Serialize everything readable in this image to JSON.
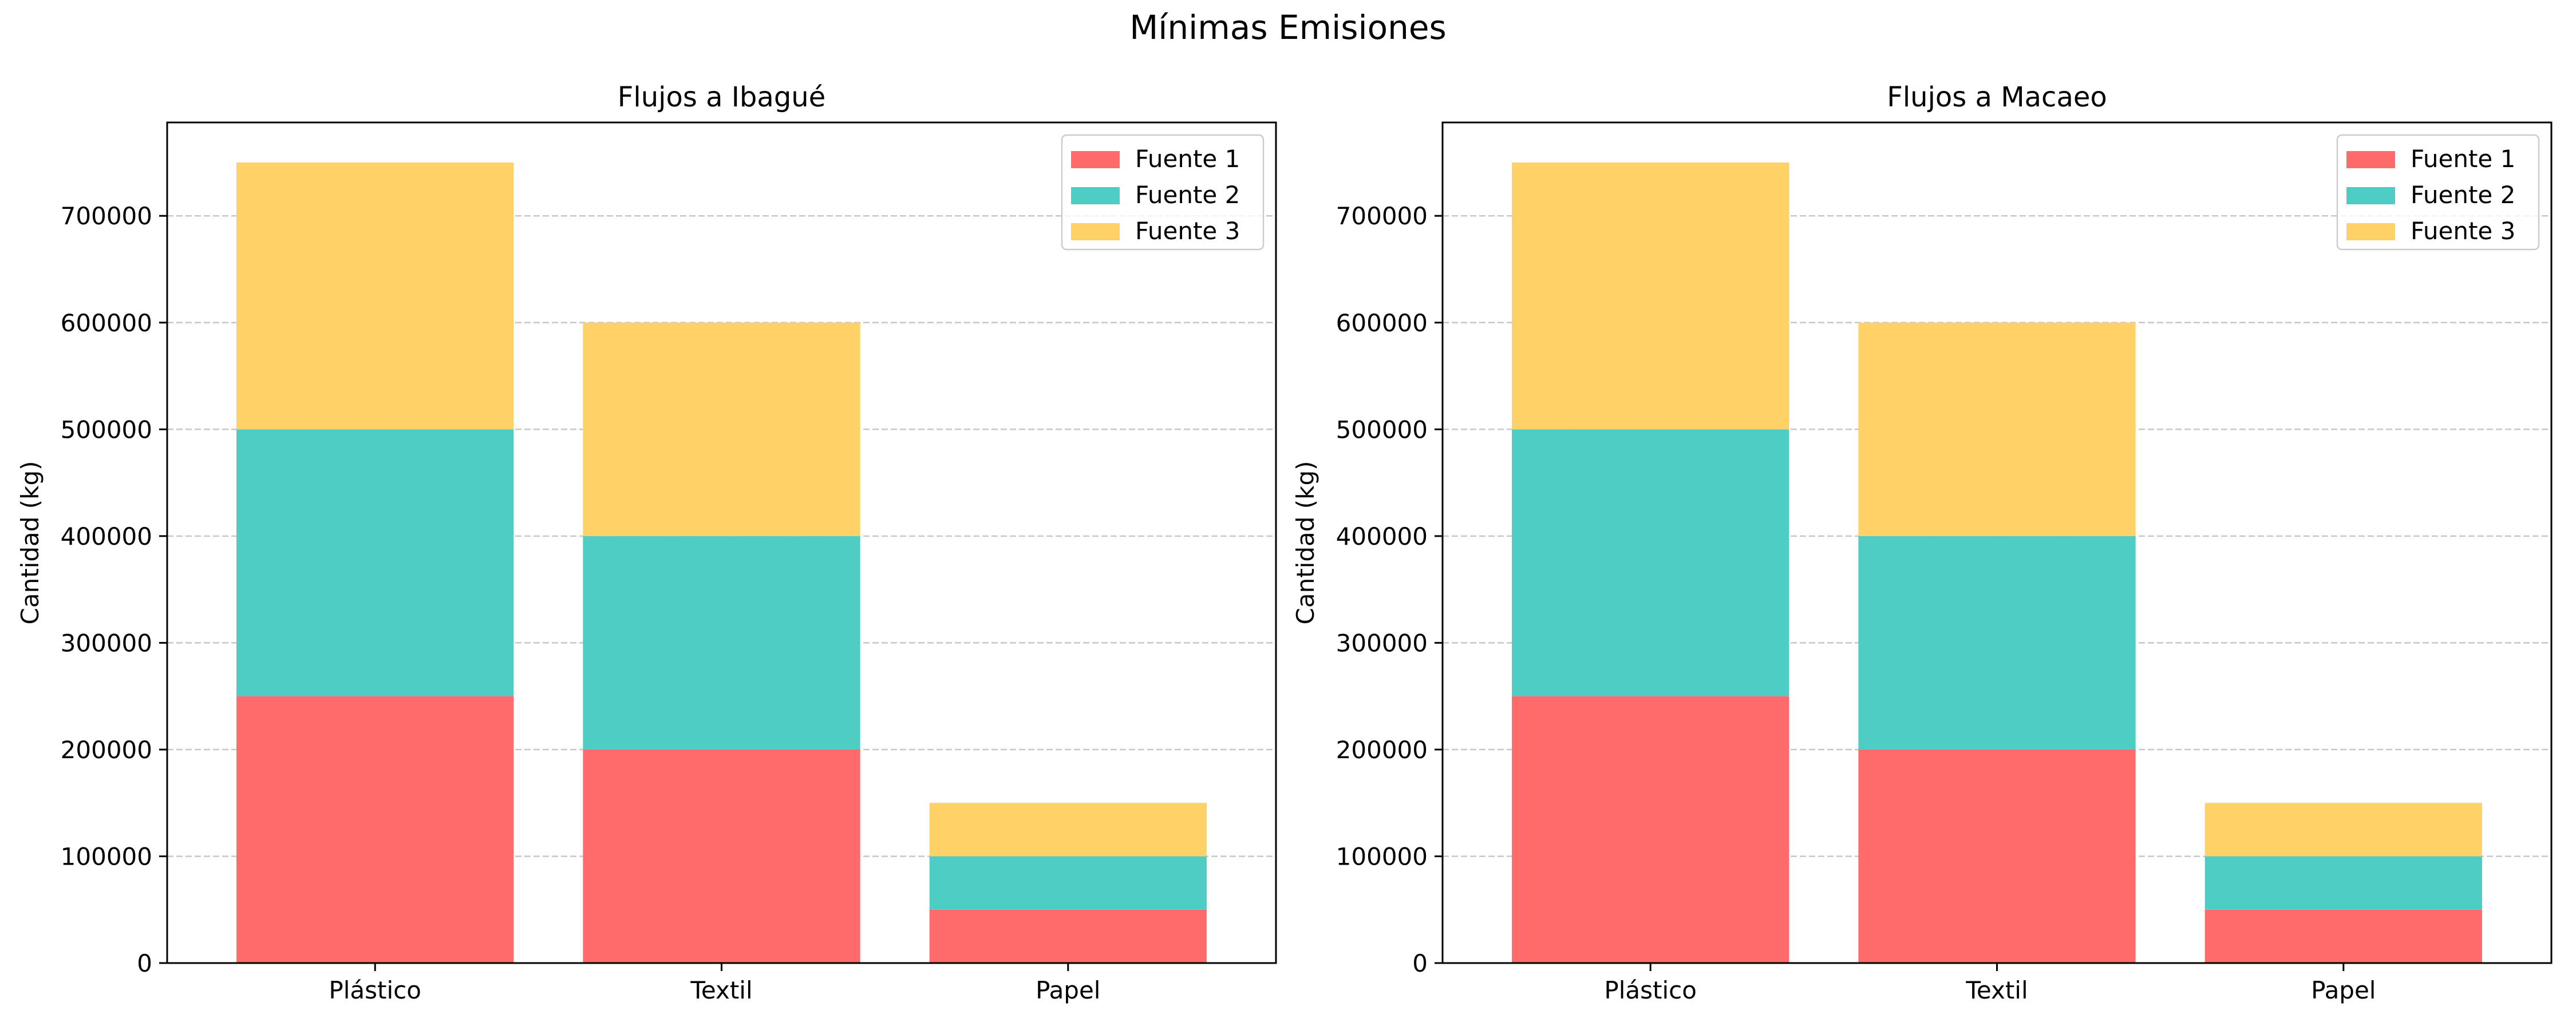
{
  "title": "Mínimas Emisiones",
  "colors": {
    "Fuente 1": "#ff6b6b",
    "Fuente 2": "#4ecdc4",
    "Fuente 3": "#ffd166"
  },
  "chart_data": [
    {
      "type": "bar",
      "stacked": true,
      "title": "Flujos a Ibagué",
      "xlabel": "",
      "ylabel": "Cantidad (kg)",
      "categories": [
        "Plástico",
        "Textil",
        "Papel"
      ],
      "series": [
        {
          "name": "Fuente 1",
          "values": [
            250000,
            200000,
            50000
          ]
        },
        {
          "name": "Fuente 2",
          "values": [
            250000,
            200000,
            50000
          ]
        },
        {
          "name": "Fuente 3",
          "values": [
            250000,
            200000,
            50000
          ]
        }
      ],
      "ylim": [
        0,
        787500
      ],
      "yticks": [
        0,
        100000,
        200000,
        300000,
        400000,
        500000,
        600000,
        700000
      ],
      "grid": "y-dashed",
      "legend": "top-right"
    },
    {
      "type": "bar",
      "stacked": true,
      "title": "Flujos a Macaeo",
      "xlabel": "",
      "ylabel": "Cantidad (kg)",
      "categories": [
        "Plástico",
        "Textil",
        "Papel"
      ],
      "series": [
        {
          "name": "Fuente 1",
          "values": [
            250000,
            200000,
            50000
          ]
        },
        {
          "name": "Fuente 2",
          "values": [
            250000,
            200000,
            50000
          ]
        },
        {
          "name": "Fuente 3",
          "values": [
            250000,
            200000,
            50000
          ]
        }
      ],
      "ylim": [
        0,
        787500
      ],
      "yticks": [
        0,
        100000,
        200000,
        300000,
        400000,
        500000,
        600000,
        700000
      ],
      "grid": "y-dashed",
      "legend": "top-right"
    }
  ]
}
